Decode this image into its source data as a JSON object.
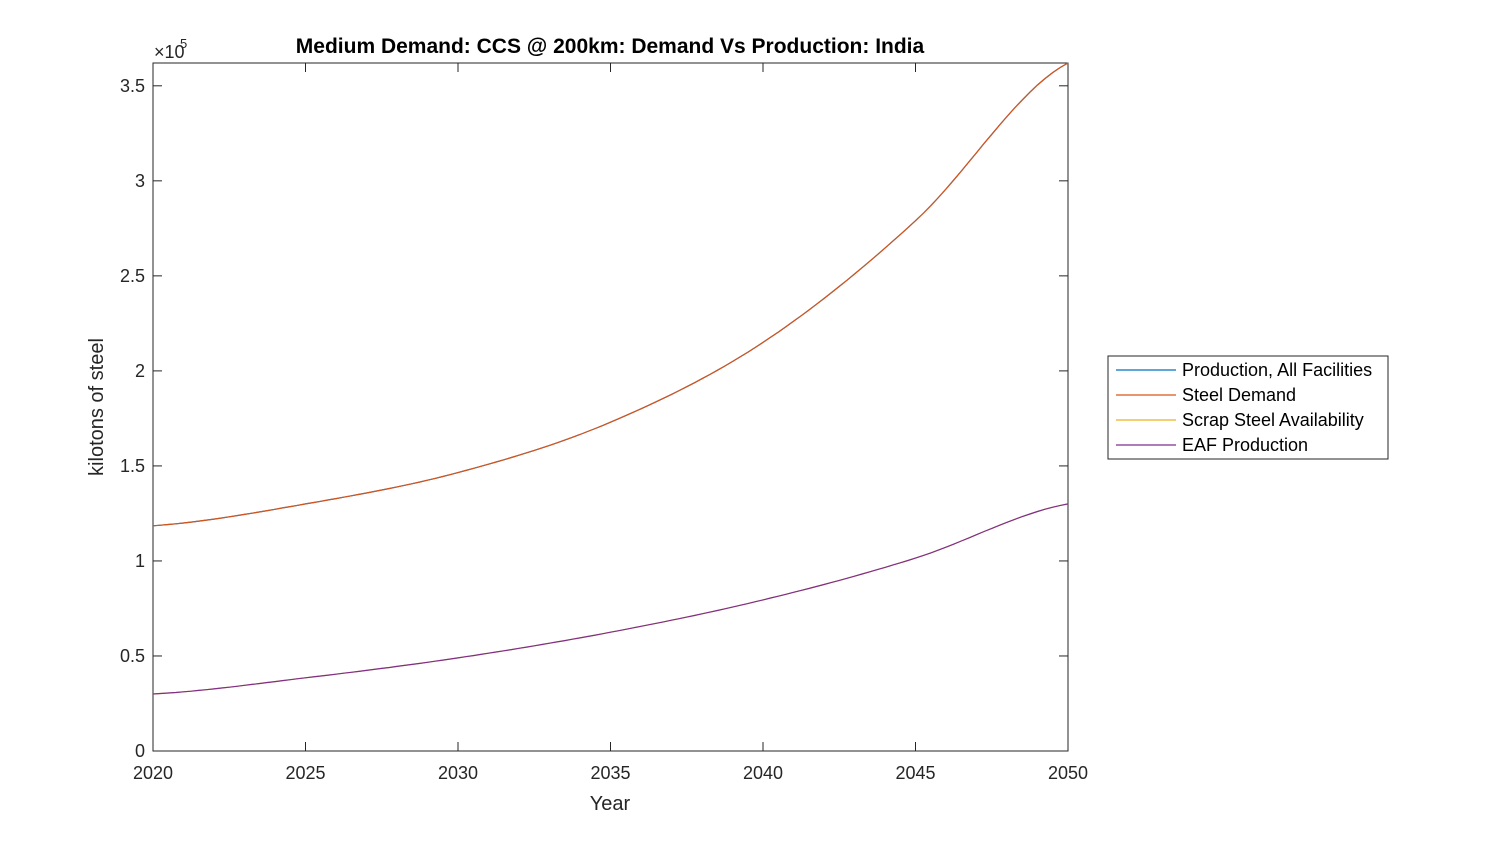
{
  "chart_data": {
    "type": "line",
    "title": "Medium Demand: CCS @ 200km: Demand Vs Production: India",
    "xlabel": "Year",
    "ylabel": "kilotons of steel",
    "y_exponent": {
      "base": "×10",
      "power": "5"
    },
    "xlim": [
      2020,
      2050
    ],
    "ylim": [
      0,
      362000
    ],
    "x_ticks": [
      2020,
      2025,
      2030,
      2035,
      2040,
      2045,
      2050
    ],
    "x_tick_labels": [
      "2020",
      "2025",
      "2030",
      "2035",
      "2040",
      "2045",
      "2050"
    ],
    "y_ticks": [
      0,
      50000,
      100000,
      150000,
      200000,
      250000,
      300000,
      350000
    ],
    "y_tick_labels": [
      "0",
      "0.5",
      "1",
      "1.5",
      "2",
      "2.5",
      "3",
      "3.5"
    ],
    "grid": false,
    "legend_position": "right-middle",
    "x": [
      2020,
      2025,
      2030,
      2035,
      2040,
      2045,
      2050
    ],
    "series": [
      {
        "name": "Production, All Facilities",
        "color": "#0072BD",
        "values": [
          118500,
          130000,
          146500,
          173000,
          215000,
          279000,
          362000
        ]
      },
      {
        "name": "Steel Demand",
        "color": "#D95319",
        "values": [
          118500,
          130000,
          146500,
          173000,
          215000,
          279000,
          362000
        ]
      },
      {
        "name": "Scrap Steel Availability",
        "color": "#EDB120",
        "values": [
          30000,
          38500,
          49000,
          62500,
          79500,
          101500,
          130000
        ]
      },
      {
        "name": "EAF Production",
        "color": "#7E2F8E",
        "values": [
          30000,
          38500,
          49000,
          62500,
          79500,
          101500,
          130000
        ]
      }
    ]
  }
}
